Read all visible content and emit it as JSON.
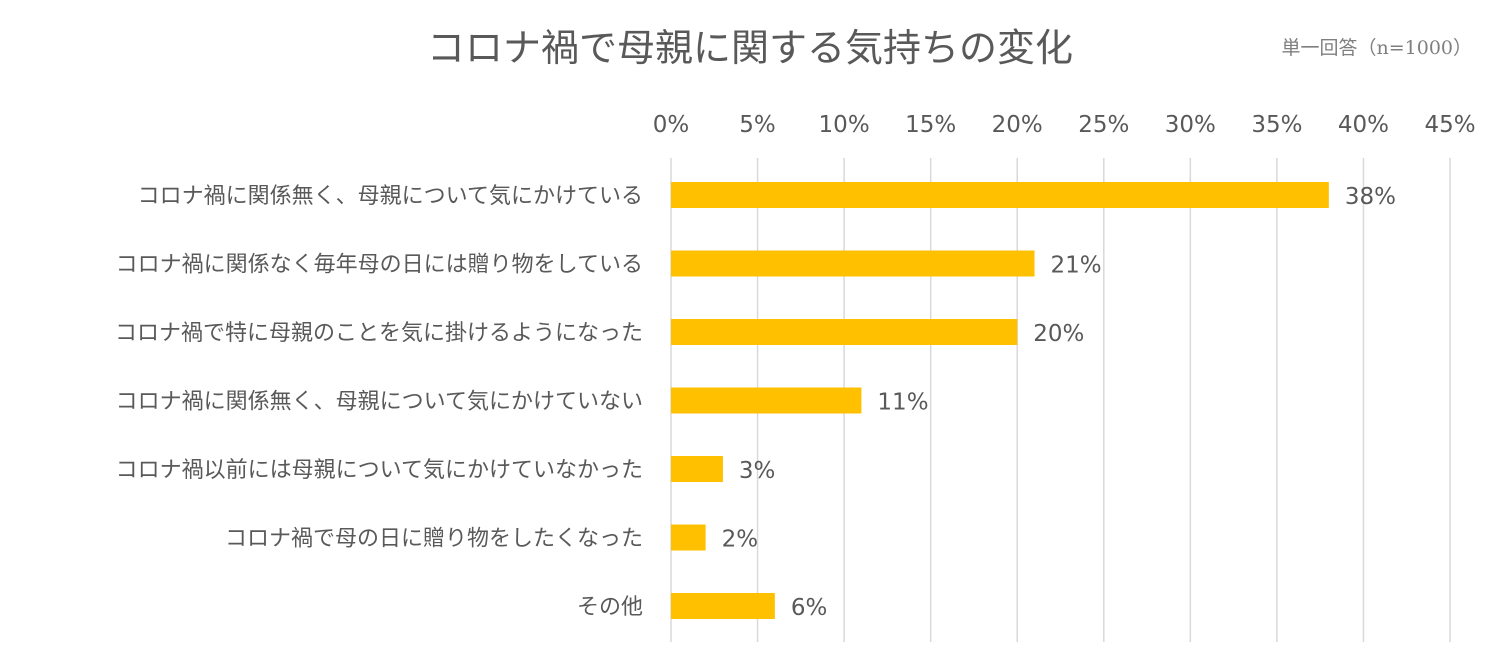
{
  "chart_data": {
    "type": "bar",
    "orientation": "horizontal",
    "title": "コロナ禍で母親に関する気持ちの変化",
    "note": "単一回答（n=1000）",
    "categories": [
      "コロナ禍に関係無く、母親について気にかけている",
      "コロナ禍に関係なく毎年母の日には贈り物をしている",
      "コロナ禍で特に母親のことを気に掛けるようになった",
      "コロナ禍に関係無く、母親について気にかけていない",
      "コロナ禍以前には母親について気にかけていなかった",
      "コロナ禍で母の日に贈り物をしたくなった",
      "その他"
    ],
    "values": [
      38,
      21,
      20,
      11,
      3,
      2,
      6
    ],
    "data_labels": [
      "38%",
      "21%",
      "20%",
      "11%",
      "3%",
      "2%",
      "6%"
    ],
    "xlim": [
      0,
      45
    ],
    "x_ticks": [
      0,
      5,
      10,
      15,
      20,
      25,
      30,
      35,
      40,
      45
    ],
    "x_tick_labels": [
      "0%",
      "5%",
      "10%",
      "15%",
      "20%",
      "25%",
      "30%",
      "35%",
      "40%",
      "45%"
    ],
    "x_axis_position": "top",
    "grid": true,
    "legend": "none",
    "bar_color": "#FFC000",
    "grid_color": "#D9D9D9",
    "text_color": "#595959"
  }
}
